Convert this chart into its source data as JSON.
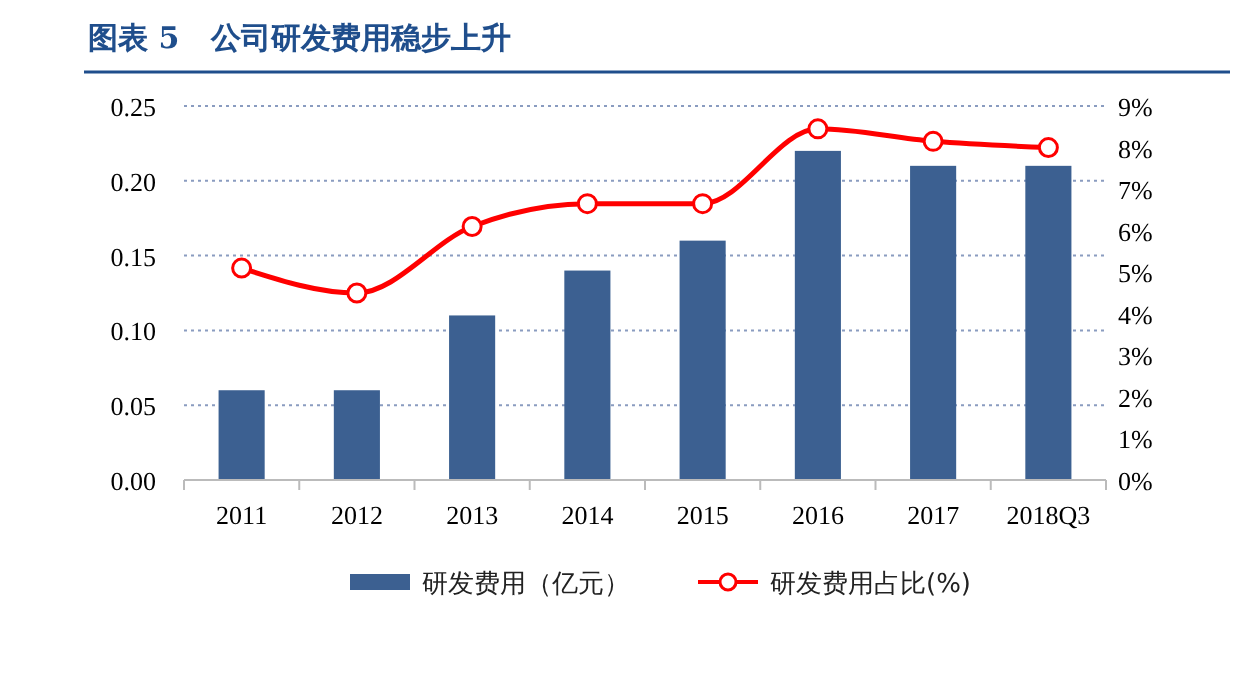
{
  "chart_data": {
    "type": "bar",
    "title": "图表 5   公司研发费用稳步上升",
    "categories": [
      "2011",
      "2012",
      "2013",
      "2014",
      "2015",
      "2016",
      "2017",
      "2018Q3"
    ],
    "series": [
      {
        "name": "研发费用（亿元）",
        "color": "#3c6091",
        "values": [
          0.06,
          0.06,
          0.11,
          0.14,
          0.16,
          0.22,
          0.21,
          0.21
        ]
      },
      {
        "name": "研发费用占比(%)",
        "type": "line",
        "axis": "y2",
        "color": "#ff0000",
        "marker": "circle",
        "values": [
          5.1,
          4.5,
          6.1,
          6.65,
          6.65,
          8.45,
          8.15,
          8.0
        ]
      }
    ],
    "ylim": [
      0,
      0.25
    ],
    "yticks": [
      {
        "value": 0,
        "label": "0.00"
      },
      {
        "value": 0.05,
        "label": "0.05"
      },
      {
        "value": 0.1,
        "label": "0.10"
      },
      {
        "value": 0.15,
        "label": "0.15"
      },
      {
        "value": 0.2,
        "label": "0.20"
      },
      {
        "value": 0.25,
        "label": "0.25"
      }
    ],
    "y2lim": [
      0,
      9
    ],
    "y2ticks": [
      {
        "value": 0,
        "label": "0%"
      },
      {
        "value": 1,
        "label": "1%"
      },
      {
        "value": 2,
        "label": "2%"
      },
      {
        "value": 3,
        "label": "3%"
      },
      {
        "value": 4,
        "label": "4%"
      },
      {
        "value": 5,
        "label": "5%"
      },
      {
        "value": 6,
        "label": "6%"
      },
      {
        "value": 7,
        "label": "7%"
      },
      {
        "value": 8,
        "label": "8%"
      },
      {
        "value": 9,
        "label": "9%"
      }
    ],
    "grid": "y",
    "legend": "bottom"
  }
}
